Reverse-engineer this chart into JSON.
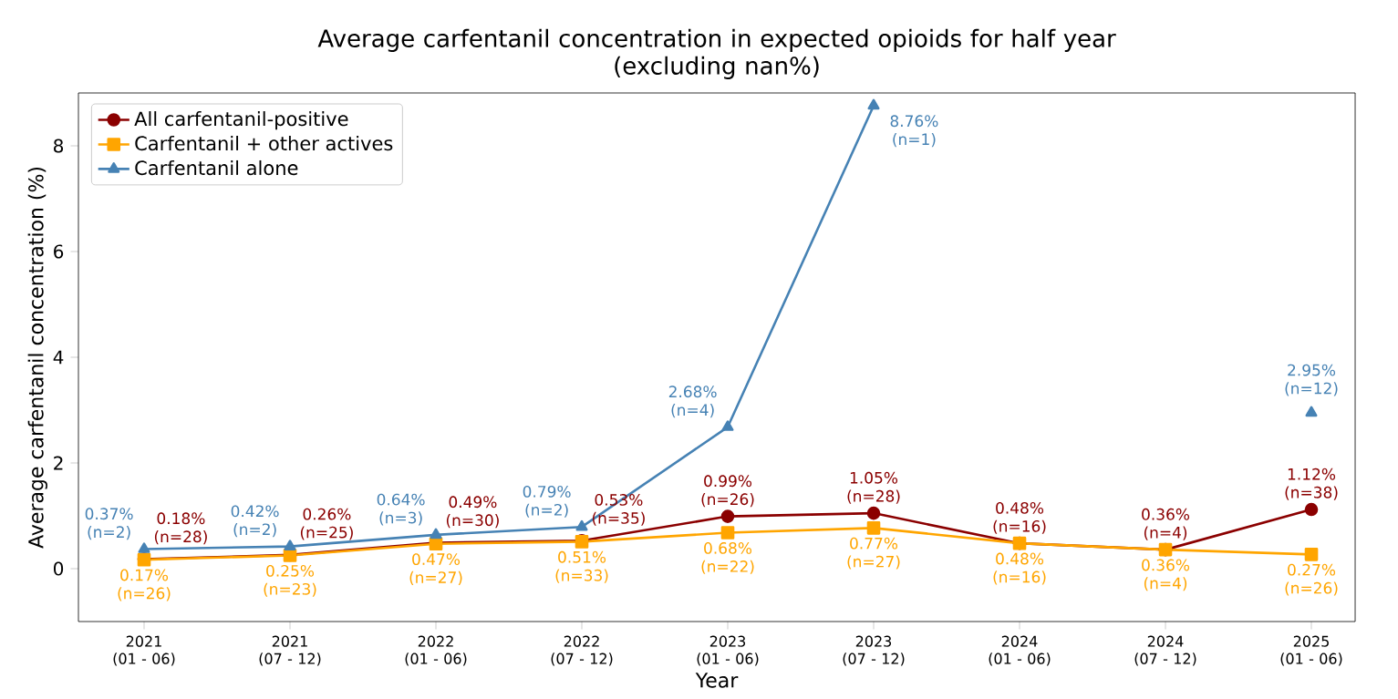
{
  "chart_data": {
    "type": "line",
    "title": "Average carfentanil concentration in expected opioids for half year\n(excluding nan%)",
    "xlabel": "Year",
    "ylabel": "Average carfentanil concentration (%)",
    "categories": [
      "2021\n(01 - 06)",
      "2021\n(07 - 12)",
      "2022\n(01 - 06)",
      "2022\n(07 - 12)",
      "2023\n(01 - 06)",
      "2023\n(07 - 12)",
      "2024\n(01 - 06)",
      "2024\n(07 - 12)",
      "2025\n(01 - 06)"
    ],
    "ylim": [
      -1,
      9
    ],
    "yticks": [
      0,
      2,
      4,
      6,
      8
    ],
    "grid": false,
    "legend": "top left",
    "series": [
      {
        "name": "All carfentanil-positive",
        "color": "#8b0000",
        "marker": "circle",
        "values": [
          0.18,
          0.26,
          0.49,
          0.53,
          0.99,
          1.05,
          0.48,
          0.36,
          1.12
        ],
        "value_labels": [
          "0.18%\n(n=28)",
          "0.26%\n(n=25)",
          "0.49%\n(n=30)",
          "0.53%\n(n=35)",
          "0.99%\n(n=26)",
          "1.05%\n(n=28)",
          "0.48%\n(n=16)",
          "0.36%\n(n=4)",
          "1.12%\n(n=38)"
        ]
      },
      {
        "name": "Carfentanil + other actives",
        "color": "#ffa500",
        "marker": "square",
        "values": [
          0.17,
          0.25,
          0.47,
          0.51,
          0.68,
          0.77,
          0.48,
          0.36,
          0.27
        ],
        "value_labels": [
          "0.17%\n(n=26)",
          "0.25%\n(n=23)",
          "0.47%\n(n=27)",
          "0.51%\n(n=33)",
          "0.68%\n(n=22)",
          "0.77%\n(n=27)",
          "0.48%\n(n=16)",
          "0.36%\n(n=4)",
          "0.27%\n(n=26)"
        ]
      },
      {
        "name": "Carfentanil alone",
        "color": "#4682b4",
        "marker": "triangle",
        "values": [
          0.37,
          0.42,
          0.64,
          0.79,
          2.68,
          8.76,
          null,
          null,
          2.95
        ],
        "value_labels": [
          "0.37%\n(n=2)",
          "0.42%\n(n=2)",
          "0.64%\n(n=3)",
          "0.79%\n(n=2)",
          "2.68%\n(n=4)",
          "8.76%\n(n=1)",
          null,
          null,
          "2.95%\n(n=12)"
        ]
      }
    ]
  }
}
